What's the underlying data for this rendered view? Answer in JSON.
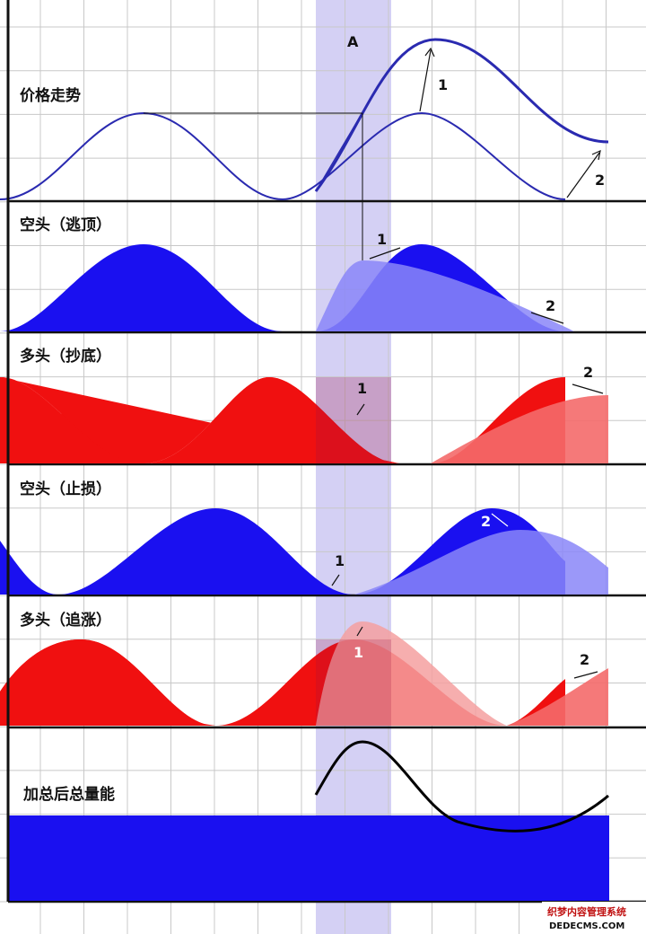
{
  "marker_A": "A",
  "panels": [
    {
      "title": "价格走势",
      "markers": [
        "1",
        "2"
      ]
    },
    {
      "title": "空头（逃顶）",
      "markers": [
        "1",
        "2"
      ]
    },
    {
      "title": "多头（抄底）",
      "markers": [
        "1",
        "2"
      ]
    },
    {
      "title": "空头（止损）",
      "markers": [
        "1",
        "2"
      ]
    },
    {
      "title": "多头（追涨）",
      "markers": [
        "1",
        "2"
      ]
    },
    {
      "title": "加总后总量能"
    }
  ],
  "watermark": {
    "line1": "织梦内容管理系统",
    "line2": "DEDECMS.COM"
  },
  "colors": {
    "blue_fill": "#1a10f0",
    "red_fill": "#f01010",
    "price_line": "#2a2ab0",
    "highlight_band": "#d4d0f4",
    "grid": "#c8c8c8",
    "axis": "#111111",
    "total_curve": "#000000"
  }
}
